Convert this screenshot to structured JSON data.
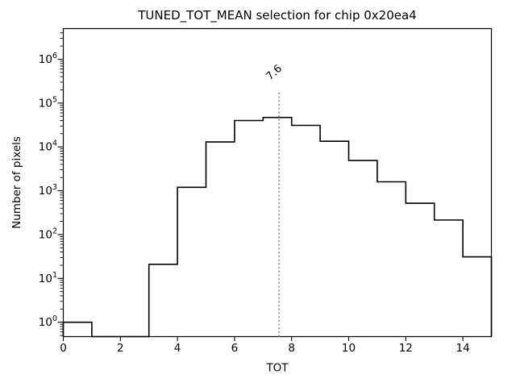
{
  "chart_data": {
    "type": "bar",
    "subtype": "step-histogram",
    "title": "TUNED_TOT_MEAN selection for chip 0x20ea4",
    "xlabel": "TOT",
    "ylabel": "Number of pixels",
    "xlim": [
      0,
      15
    ],
    "ylim": [
      0.47,
      5000000
    ],
    "yscale": "log",
    "grid": false,
    "x_ticks": [
      0,
      2,
      4,
      6,
      8,
      10,
      12,
      14
    ],
    "y_tick_exponents": [
      0,
      1,
      2,
      3,
      4,
      5,
      6
    ],
    "bin_edges": [
      0,
      1,
      2,
      3,
      4,
      5,
      6,
      7,
      8,
      9,
      10,
      11,
      12,
      13,
      14,
      15
    ],
    "counts": [
      1,
      0,
      0,
      21,
      1200,
      13000,
      40000,
      47000,
      31000,
      13500,
      4900,
      1600,
      520,
      215,
      31
    ],
    "line_color": "#000000",
    "marker": {
      "x": 7.56,
      "label": "7.6",
      "color": "#8a8a8a",
      "style": "dotted",
      "y_top_frac": 0.8
    },
    "colors": {
      "background": "#ffffff",
      "axis": "#000000",
      "text": "#000000"
    }
  }
}
